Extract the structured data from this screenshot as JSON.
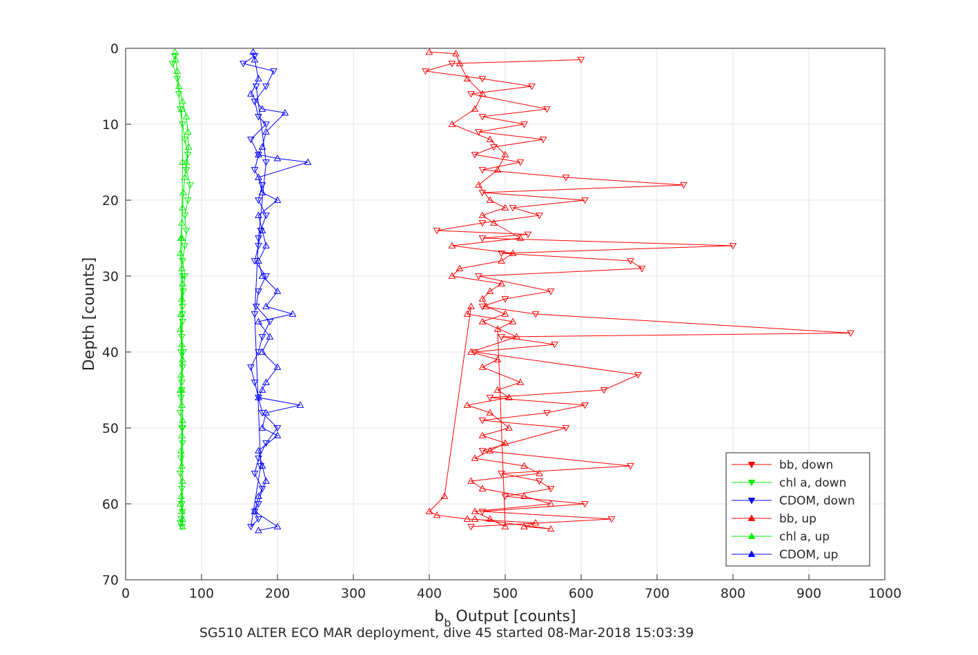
{
  "chart_data": {
    "type": "line",
    "title": "SG510 ALTER ECO MAR deployment, dive 45 started 08-Mar-2018 15:03:39",
    "xlabel_main": "b",
    "xlabel_sub": "b",
    "xlabel_rest": " Output [counts]",
    "ylabel": "Depth [counts]",
    "xlim": [
      0,
      1000
    ],
    "ylim": [
      0,
      70
    ],
    "y_reversed": true,
    "grid": true,
    "legend_position": "bottom-right",
    "xticks": [
      "0",
      "100",
      "200",
      "300",
      "400",
      "500",
      "600",
      "700",
      "800",
      "900",
      "1000"
    ],
    "yticks": [
      "0",
      "10",
      "20",
      "30",
      "40",
      "50",
      "60",
      "70"
    ],
    "series": [
      {
        "name": "bb, down",
        "color": "#ff0000",
        "marker": "triangle-down",
        "x": [
          600,
          430,
          395,
          470,
          535,
          455,
          555,
          470,
          525,
          465,
          550,
          485,
          460,
          520,
          470,
          580,
          735,
          470,
          605,
          510,
          545,
          470,
          410,
          530,
          470,
          800,
          495,
          665,
          680,
          465,
          560,
          500,
          470,
          540,
          955,
          495,
          565,
          460,
          675,
          630,
          480,
          605,
          555,
          470,
          580,
          470,
          665,
          495,
          545,
          560,
          500,
          605,
          470,
          640,
          455
        ],
        "y": [
          1.5,
          2,
          3,
          4,
          5,
          6,
          8,
          9,
          10,
          11,
          12,
          13,
          14,
          15,
          16,
          17,
          18,
          19,
          20,
          21,
          22,
          23,
          24,
          24.5,
          25,
          26,
          27,
          28,
          29,
          30,
          32,
          33,
          34,
          35,
          37.5,
          38,
          39,
          40,
          43,
          45,
          46,
          47,
          48,
          49,
          50,
          53,
          55,
          56,
          57,
          58,
          59,
          60,
          61,
          62,
          63
        ]
      },
      {
        "name": "chl a, down",
        "color": "#00ee00",
        "marker": "triangle-down",
        "x": [
          65,
          62,
          68,
          70,
          72,
          75,
          78,
          82,
          80,
          85,
          82,
          78,
          80,
          78,
          75,
          78,
          76,
          75,
          75,
          74,
          76,
          75,
          74,
          73,
          72,
          74,
          75,
          73,
          72,
          74,
          74,
          75,
          73,
          72,
          74,
          75,
          74,
          73,
          75,
          75
        ],
        "y": [
          1,
          2,
          4,
          6,
          8,
          10,
          12,
          14,
          16,
          18,
          20,
          22,
          24,
          26,
          28,
          30,
          32,
          34,
          36,
          38,
          40,
          42,
          44,
          46,
          48,
          50,
          52,
          54,
          56,
          58,
          60,
          61,
          62,
          62.5,
          63,
          50,
          45,
          40,
          35,
          30
        ]
      },
      {
        "name": "CDOM, down",
        "color": "#0000ff",
        "marker": "triangle-down",
        "x": [
          170,
          155,
          195,
          185,
          170,
          175,
          185,
          165,
          175,
          170,
          180,
          175,
          185,
          178,
          175,
          170,
          185,
          175,
          172,
          190,
          180,
          175,
          165,
          170,
          175,
          180,
          200,
          185,
          175,
          170,
          180,
          175,
          170,
          175,
          165,
          178,
          170,
          175,
          185,
          172
        ],
        "y": [
          1,
          2,
          3,
          5,
          7,
          9,
          10,
          12,
          14,
          16,
          18,
          20,
          22,
          24,
          26,
          28,
          30,
          32,
          34,
          36,
          38,
          40,
          42,
          44,
          46,
          48,
          50,
          52,
          54,
          56,
          58,
          60,
          61,
          62,
          63,
          55,
          35,
          25,
          15,
          5
        ]
      },
      {
        "name": "bb, up",
        "color": "#ff0000",
        "marker": "triangle-up",
        "x": [
          400,
          435,
          440,
          450,
          470,
          460,
          430,
          480,
          500,
          490,
          465,
          480,
          500,
          470,
          485,
          520,
          430,
          510,
          495,
          440,
          430,
          495,
          480,
          470,
          475,
          500,
          470,
          515,
          455,
          490,
          470,
          520,
          490,
          505,
          450,
          480,
          505,
          470,
          500,
          480,
          460,
          525,
          545,
          455,
          470,
          525,
          560,
          460,
          480,
          500,
          490,
          510,
          450,
          455,
          420,
          400,
          410,
          450,
          540,
          525,
          560,
          460
        ],
        "y": [
          0.5,
          0.7,
          2,
          4,
          6,
          8,
          10,
          12,
          14,
          16,
          18,
          20,
          21,
          22,
          23,
          25,
          26,
          27,
          28,
          29,
          30,
          31,
          32,
          33,
          34,
          35,
          36,
          38,
          40,
          41,
          42,
          44,
          45,
          46,
          47,
          48,
          50,
          51,
          52,
          53,
          54,
          55,
          56,
          57,
          58,
          59,
          60,
          61,
          62,
          63,
          37,
          36,
          35,
          34,
          59,
          61,
          61.5,
          62,
          62.5,
          63,
          63.3,
          62
        ]
      },
      {
        "name": "chl a, up",
        "color": "#00ee00",
        "marker": "triangle-up",
        "x": [
          65,
          66,
          68,
          70,
          75,
          80,
          82,
          83,
          80,
          78,
          76,
          75,
          74,
          73,
          72,
          74,
          75,
          74,
          73,
          72,
          74,
          75,
          73,
          72,
          74,
          75,
          74,
          73,
          74,
          75,
          73,
          72,
          74,
          75,
          75,
          74,
          73,
          74,
          75,
          74
        ],
        "y": [
          0.5,
          1.5,
          3,
          5,
          7,
          9,
          11,
          13,
          15,
          17,
          19,
          21,
          23,
          25,
          27,
          29,
          31,
          33,
          35,
          37,
          39,
          41,
          43,
          45,
          47,
          49,
          51,
          53,
          55,
          57,
          59,
          60,
          61,
          62,
          63,
          45,
          35,
          25,
          15,
          8
        ]
      },
      {
        "name": "CDOM, up",
        "color": "#0000ff",
        "marker": "triangle-up",
        "x": [
          168,
          170,
          175,
          165,
          180,
          210,
          185,
          180,
          175,
          200,
          240,
          175,
          180,
          200,
          175,
          180,
          185,
          175,
          180,
          200,
          185,
          220,
          175,
          190,
          180,
          200,
          185,
          180,
          175,
          230,
          185,
          180,
          200,
          175,
          180,
          185,
          175,
          170,
          200,
          175
        ],
        "y": [
          0.5,
          1.5,
          4,
          6,
          8,
          8.5,
          11,
          13,
          14,
          14.5,
          15,
          17,
          19,
          20,
          22,
          24,
          26,
          28,
          30,
          32,
          34,
          35,
          36,
          38,
          40,
          42,
          44,
          45,
          46,
          47,
          48,
          50,
          51,
          53,
          55,
          57,
          59,
          61,
          63,
          63.5
        ]
      }
    ]
  }
}
